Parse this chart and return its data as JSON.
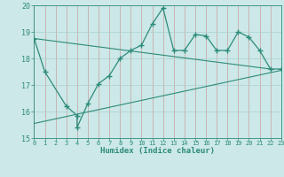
{
  "main_x": [
    0,
    1,
    3,
    4,
    4,
    5,
    6,
    7,
    8,
    9,
    10,
    11,
    12,
    13,
    14,
    15,
    16,
    17,
    18,
    19,
    20,
    21,
    22,
    23
  ],
  "main_y": [
    18.75,
    17.5,
    16.2,
    15.85,
    15.4,
    16.3,
    17.05,
    17.35,
    18.0,
    18.3,
    18.5,
    19.3,
    19.9,
    18.3,
    18.3,
    18.9,
    18.85,
    18.3,
    18.3,
    19.0,
    18.8,
    18.3,
    17.6,
    17.6
  ],
  "upper_line_x": [
    0,
    22
  ],
  "upper_line_y": [
    18.75,
    17.6
  ],
  "lower_line_x": [
    0,
    23
  ],
  "lower_line_y": [
    15.55,
    17.55
  ],
  "line_color": "#2d8b7a",
  "bg_color": "#cce8e8",
  "grid_major_color": "#aad0d0",
  "grid_minor_color": "#bbdcdc",
  "xlim": [
    0,
    23
  ],
  "ylim": [
    15.0,
    20.0
  ],
  "xticks": [
    0,
    1,
    2,
    3,
    4,
    5,
    6,
    7,
    8,
    9,
    10,
    11,
    12,
    13,
    14,
    15,
    16,
    17,
    18,
    19,
    20,
    21,
    22,
    23
  ],
  "yticks": [
    15,
    16,
    17,
    18,
    19,
    20
  ],
  "xlabel": "Humidex (Indice chaleur)"
}
